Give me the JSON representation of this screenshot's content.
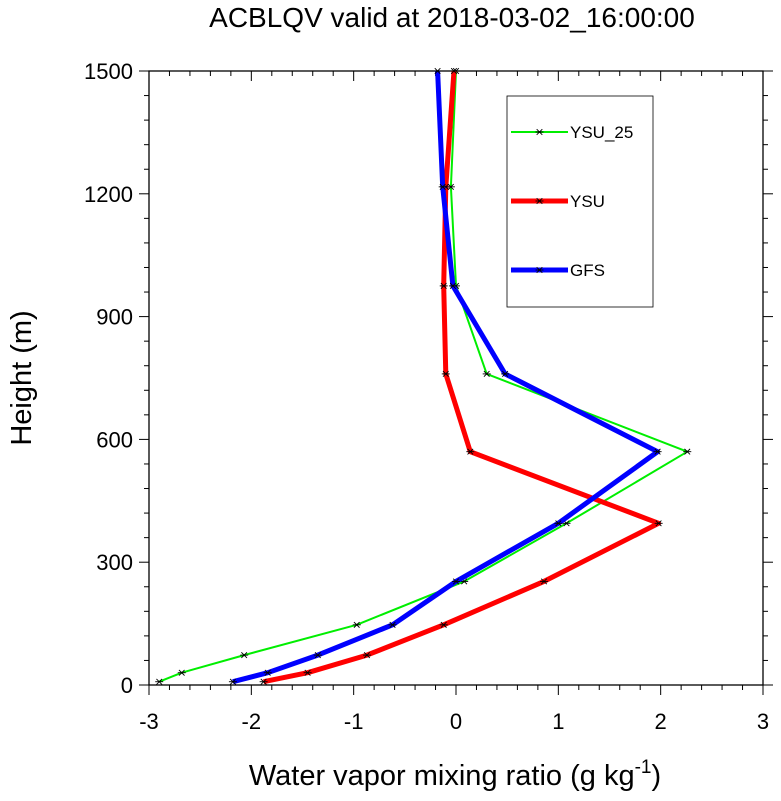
{
  "chart_data": {
    "type": "line",
    "title": "ACBLQV valid at 2018-03-02_16:00:00",
    "xlabel": "Water vapor mixing ratio (g kg",
    "xlabel_superscript": "-1",
    "xlabel_suffix": ")",
    "ylabel": "Height (m)",
    "xlim": [
      -3,
      3
    ],
    "ylim": [
      0,
      1500
    ],
    "xticks": [
      -3,
      -2,
      -1,
      0,
      1,
      2,
      3
    ],
    "yticks": [
      0,
      300,
      600,
      900,
      1200,
      1500
    ],
    "grid": false,
    "legend_position": "top-right",
    "series": [
      {
        "name": "YSU_25",
        "color": "#00ee00",
        "marker": "asterisk",
        "points": [
          {
            "x": -2.9,
            "y": 8
          },
          {
            "x": -2.68,
            "y": 30
          },
          {
            "x": -2.07,
            "y": 73
          },
          {
            "x": -0.97,
            "y": 147
          },
          {
            "x": 0.08,
            "y": 253
          },
          {
            "x": 1.08,
            "y": 395
          },
          {
            "x": 2.26,
            "y": 570
          },
          {
            "x": 0.3,
            "y": 760
          },
          {
            "x": 0.0,
            "y": 975
          },
          {
            "x": -0.05,
            "y": 1217
          },
          {
            "x": 0.0,
            "y": 1500
          }
        ]
      },
      {
        "name": "YSU",
        "color": "#ff0000",
        "marker": "asterisk",
        "points": [
          {
            "x": -1.88,
            "y": 8
          },
          {
            "x": -1.45,
            "y": 30
          },
          {
            "x": -0.87,
            "y": 73
          },
          {
            "x": -0.12,
            "y": 147
          },
          {
            "x": 0.86,
            "y": 253
          },
          {
            "x": 1.98,
            "y": 395
          },
          {
            "x": 0.14,
            "y": 570
          },
          {
            "x": -0.1,
            "y": 760
          },
          {
            "x": -0.12,
            "y": 975
          },
          {
            "x": -0.1,
            "y": 1217
          },
          {
            "x": -0.02,
            "y": 1500
          }
        ]
      },
      {
        "name": "GFS",
        "color": "#0000ff",
        "marker": "asterisk",
        "points": [
          {
            "x": -2.18,
            "y": 8
          },
          {
            "x": -1.84,
            "y": 30
          },
          {
            "x": -1.35,
            "y": 73
          },
          {
            "x": -0.62,
            "y": 147
          },
          {
            "x": -0.0,
            "y": 253
          },
          {
            "x": 1.0,
            "y": 395
          },
          {
            "x": 1.97,
            "y": 570
          },
          {
            "x": 0.48,
            "y": 760
          },
          {
            "x": -0.03,
            "y": 975
          },
          {
            "x": -0.13,
            "y": 1217
          },
          {
            "x": -0.18,
            "y": 1500
          }
        ]
      }
    ]
  }
}
